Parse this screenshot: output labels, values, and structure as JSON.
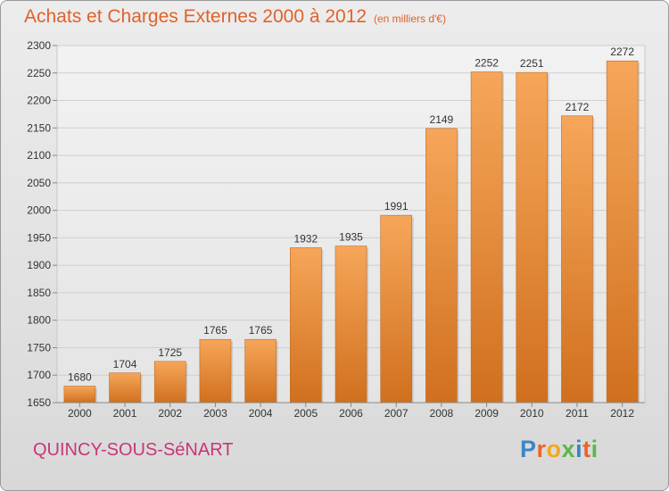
{
  "header": {
    "title": "Achats et Charges Externes 2000 à 2012",
    "subtitle": "(en milliers d'€)"
  },
  "footer": {
    "commune": "QUINCY-SOUS-SéNART",
    "logo_letters": [
      "P",
      "r",
      "o",
      "x",
      "i",
      "t",
      "i"
    ],
    "logo_colors": [
      "#3a86c8",
      "#e8662a",
      "#f2a81e",
      "#5ab84a",
      "#3a86c8",
      "#e8662a",
      "#5ab84a"
    ]
  },
  "colors": {
    "bar_top": "#f6a65a",
    "bar_bottom": "#d0701e",
    "grid": "#cfcfcf",
    "axis_text": "#333333"
  },
  "chart_data": {
    "type": "bar",
    "categories": [
      "2000",
      "2001",
      "2002",
      "2003",
      "2004",
      "2005",
      "2006",
      "2007",
      "2008",
      "2009",
      "2010",
      "2011",
      "2012"
    ],
    "values": [
      1680,
      1704,
      1725,
      1765,
      1765,
      1932,
      1935,
      1991,
      2149,
      2252,
      2251,
      2172,
      2272
    ],
    "yticks": [
      1650,
      1700,
      1750,
      1800,
      1850,
      1900,
      1950,
      2000,
      2050,
      2100,
      2150,
      2200,
      2250,
      2300
    ],
    "ylim": [
      1650,
      2300
    ],
    "grid": true,
    "title": "Achats et Charges Externes 2000 à 2012",
    "xlabel": "",
    "ylabel": ""
  }
}
